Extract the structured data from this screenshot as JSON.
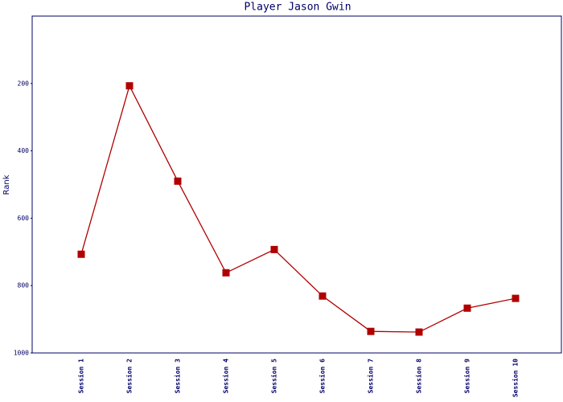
{
  "chart_data": {
    "type": "line",
    "title": "Player Jason Gwin",
    "y_label": "Rank",
    "categories": [
      "Session 1",
      "Session 2",
      "Session 3",
      "Session 4",
      "Session 5",
      "Session 6",
      "Session 7",
      "Session 8",
      "Session 9",
      "Session 10"
    ],
    "series": [
      {
        "color": "#b00000",
        "values": [
          707,
          207,
          490,
          762,
          693,
          831,
          936,
          938,
          867,
          838
        ]
      }
    ],
    "ylim": [
      0,
      1000
    ],
    "y_inverted": true,
    "yticks": [
      200,
      400,
      600,
      800,
      1000
    ],
    "grid": false
  }
}
